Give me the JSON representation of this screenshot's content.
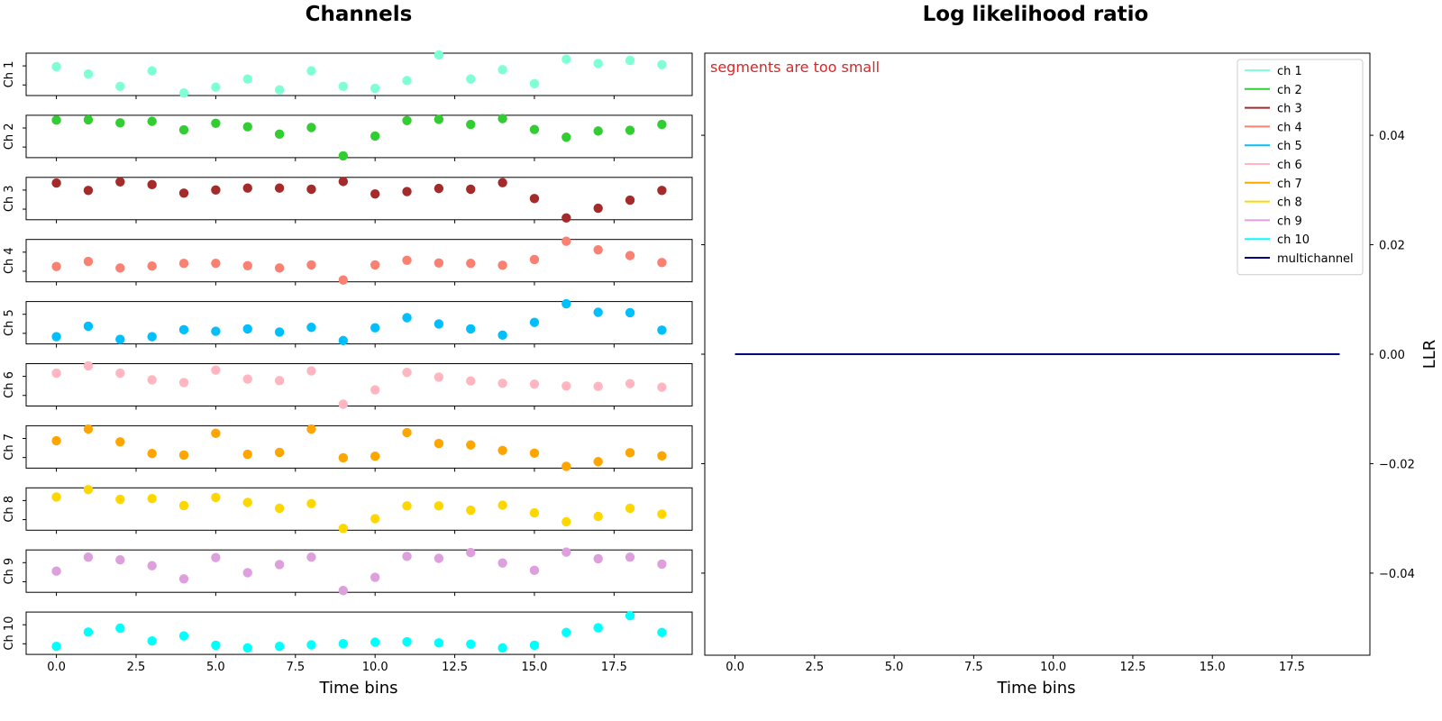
{
  "left_title": "Channels",
  "right_title": "Log likelihood ratio",
  "left_xlabel": "Time bins",
  "right_xlabel": "Time bins",
  "right_ylabel": "LLR",
  "annotation": "segments are too small",
  "annotation_color": "#d62728",
  "x_ticks": [
    "0.0",
    "2.5",
    "5.0",
    "7.5",
    "10.0",
    "12.5",
    "15.0",
    "17.5"
  ],
  "llr_y_ticks": [
    "0.04",
    "0.02",
    "0.00",
    "−0.02",
    "−0.04"
  ],
  "chart_data": [
    {
      "type": "scatter",
      "title": "Channels",
      "xlabel": "Time bins",
      "xlim": [
        -0.95,
        19.95
      ],
      "x": [
        0,
        1,
        2,
        3,
        4,
        5,
        6,
        7,
        8,
        9,
        10,
        11,
        12,
        13,
        14,
        15,
        16,
        17,
        18,
        19
      ],
      "channels": [
        {
          "label": "Ch 1",
          "color": "#7fffd4",
          "values": [
            0.7,
            0.51,
            0.19,
            0.59,
            0.02,
            0.17,
            0.38,
            0.1,
            0.59,
            0.19,
            0.14,
            0.34,
            1.0,
            0.38,
            0.62,
            0.26,
            0.89,
            0.78,
            0.86,
            0.75
          ]
        },
        {
          "label": "Ch 2",
          "color": "#32cd32",
          "values": [
            0.92,
            0.93,
            0.85,
            0.89,
            0.67,
            0.84,
            0.75,
            0.56,
            0.73,
            0.0,
            0.51,
            0.91,
            0.94,
            0.81,
            0.96,
            0.68,
            0.48,
            0.64,
            0.66,
            0.81
          ]
        },
        {
          "label": "Ch 3",
          "color": "#a52a2a",
          "values": [
            0.9,
            0.71,
            0.93,
            0.86,
            0.64,
            0.72,
            0.77,
            0.77,
            0.74,
            0.94,
            0.62,
            0.68,
            0.76,
            0.74,
            0.91,
            0.5,
            0.0,
            0.25,
            0.46,
            0.71
          ]
        },
        {
          "label": "Ch 4",
          "color": "#fa8072",
          "values": [
            0.35,
            0.48,
            0.31,
            0.36,
            0.43,
            0.43,
            0.37,
            0.31,
            0.39,
            0.0,
            0.39,
            0.51,
            0.44,
            0.43,
            0.38,
            0.53,
            1.0,
            0.78,
            0.63,
            0.45
          ]
        },
        {
          "label": "Ch 5",
          "color": "#00bfff",
          "values": [
            0.14,
            0.41,
            0.07,
            0.14,
            0.32,
            0.28,
            0.34,
            0.26,
            0.38,
            0.04,
            0.37,
            0.63,
            0.47,
            0.34,
            0.18,
            0.51,
            0.99,
            0.77,
            0.76,
            0.31
          ]
        },
        {
          "label": "Ch 6",
          "color": "#ffb6c1",
          "values": [
            0.8,
            0.99,
            0.8,
            0.63,
            0.56,
            0.88,
            0.65,
            0.61,
            0.86,
            0.0,
            0.37,
            0.82,
            0.7,
            0.6,
            0.54,
            0.52,
            0.47,
            0.46,
            0.53,
            0.44
          ]
        },
        {
          "label": "Ch 7",
          "color": "#ffa500",
          "values": [
            0.66,
            0.96,
            0.63,
            0.33,
            0.29,
            0.85,
            0.31,
            0.36,
            0.96,
            0.22,
            0.26,
            0.87,
            0.59,
            0.55,
            0.41,
            0.34,
            0.0,
            0.12,
            0.35,
            0.27
          ]
        },
        {
          "label": "Ch 8",
          "color": "#ffd700",
          "values": [
            0.81,
            1.0,
            0.75,
            0.77,
            0.59,
            0.8,
            0.67,
            0.52,
            0.64,
            0.0,
            0.25,
            0.58,
            0.58,
            0.47,
            0.6,
            0.4,
            0.17,
            0.31,
            0.52,
            0.37
          ]
        },
        {
          "label": "Ch 9",
          "color": "#dda0dd",
          "values": [
            0.5,
            0.86,
            0.79,
            0.64,
            0.3,
            0.85,
            0.46,
            0.67,
            0.86,
            0.0,
            0.34,
            0.88,
            0.83,
            0.98,
            0.71,
            0.52,
            0.99,
            0.82,
            0.86,
            0.68
          ]
        },
        {
          "label": "Ch 10",
          "color": "#00ffff",
          "values": [
            0.16,
            0.53,
            0.63,
            0.3,
            0.43,
            0.19,
            0.12,
            0.16,
            0.2,
            0.23,
            0.27,
            0.28,
            0.25,
            0.22,
            0.12,
            0.19,
            0.52,
            0.64,
            0.95,
            0.52
          ]
        }
      ]
    },
    {
      "type": "line",
      "title": "Log likelihood ratio",
      "xlabel": "Time bins",
      "ylabel": "LLR",
      "xlim": [
        -0.95,
        19.95
      ],
      "ylim": [
        -0.055,
        0.055
      ],
      "legend": "top-right",
      "series": [
        {
          "name": "ch 1",
          "color": "#7fffd4",
          "x": [
            0,
            19
          ],
          "y": [
            0,
            0
          ]
        },
        {
          "name": "ch 2",
          "color": "#32cd32",
          "x": [
            0,
            19
          ],
          "y": [
            0,
            0
          ]
        },
        {
          "name": "ch 3",
          "color": "#a52a2a",
          "x": [
            0,
            19
          ],
          "y": [
            0,
            0
          ]
        },
        {
          "name": "ch 4",
          "color": "#fa8072",
          "x": [
            0,
            19
          ],
          "y": [
            0,
            0
          ]
        },
        {
          "name": "ch 5",
          "color": "#00bfff",
          "x": [
            0,
            19
          ],
          "y": [
            0,
            0
          ]
        },
        {
          "name": "ch 6",
          "color": "#ffb6c1",
          "x": [
            0,
            19
          ],
          "y": [
            0,
            0
          ]
        },
        {
          "name": "ch 7",
          "color": "#ffa500",
          "x": [
            0,
            19
          ],
          "y": [
            0,
            0
          ]
        },
        {
          "name": "ch 8",
          "color": "#ffd700",
          "x": [
            0,
            19
          ],
          "y": [
            0,
            0
          ]
        },
        {
          "name": "ch 9",
          "color": "#dda0dd",
          "x": [
            0,
            19
          ],
          "y": [
            0,
            0
          ]
        },
        {
          "name": "ch 10",
          "color": "#00ffff",
          "x": [
            0,
            19
          ],
          "y": [
            0,
            0
          ]
        },
        {
          "name": "multichannel",
          "color": "#000080",
          "x": [
            0,
            19
          ],
          "y": [
            0,
            0
          ]
        }
      ]
    }
  ]
}
